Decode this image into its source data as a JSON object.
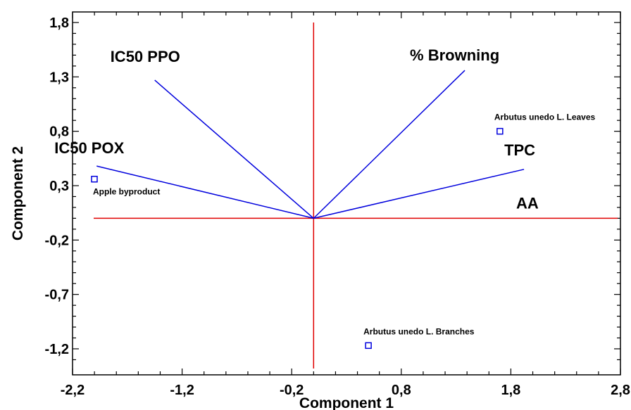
{
  "chart_data": {
    "type": "biplot",
    "title": "",
    "xlabel": "Component 1",
    "ylabel": "Component 2",
    "xlim": [
      -2.2,
      2.8
    ],
    "ylim": [
      -1.3,
      1.85
    ],
    "x_ticks": [
      "-2,2",
      "-1,2",
      "-0,2",
      "0,8",
      "1,8",
      "2,8"
    ],
    "x_tick_values": [
      -2.2,
      -1.2,
      -0.2,
      0.8,
      1.8,
      2.8
    ],
    "y_ticks": [
      "1,8",
      "1,3",
      "0,8",
      "0,3",
      "-0,2",
      "-0,7",
      "-1,2"
    ],
    "y_tick_values": [
      1.8,
      1.3,
      0.8,
      0.3,
      -0.2,
      -0.7,
      -1.2
    ],
    "reference_lines": {
      "x": 0.0,
      "y": 0.0,
      "color": "#e00000"
    },
    "vectors": [
      {
        "label": "IC50 PPO",
        "x": -1.45,
        "y": 1.27
      },
      {
        "label": "% Browning",
        "x": 1.38,
        "y": 1.36
      },
      {
        "label": "IC50 POX",
        "x": -1.98,
        "y": 0.48
      },
      {
        "label": "TPC",
        "x": 1.92,
        "y": 0.45
      },
      {
        "label": "AA",
        "x": 2.8,
        "y": 0.0
      }
    ],
    "vector_color": "#0000dd",
    "points": [
      {
        "label": "Apple byproduct",
        "x": -2.2,
        "y": 0.36
      },
      {
        "label": "Arbutus unedo L. Leaves",
        "x": 1.7,
        "y": 0.8
      },
      {
        "label": "Arbutus unedo L. Branches",
        "x": 0.5,
        "y": -1.17
      }
    ],
    "point_color": "#0000dd"
  }
}
